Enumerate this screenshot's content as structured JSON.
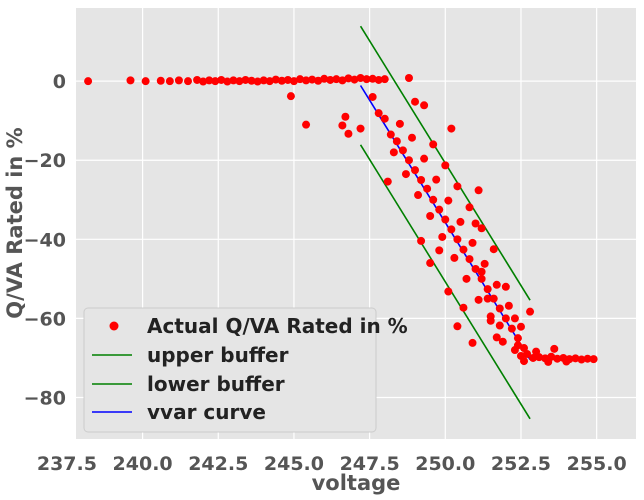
{
  "chart_data": {
    "type": "scatter",
    "title": "",
    "xlabel": "voltage",
    "ylabel": "Q/VA Rated in %",
    "xlim": [
      237.8,
      256.3
    ],
    "ylim": [
      -90.5,
      18.5
    ],
    "xticks": [
      "237.5",
      "240.0",
      "242.5",
      "245.0",
      "247.5",
      "250.0",
      "252.5",
      "255.0"
    ],
    "yticks": [
      "0",
      "−20",
      "−40",
      "−60",
      "−80"
    ],
    "grid": true,
    "legend_position": "lower-left",
    "colors": {
      "background": "#e5e5e5",
      "grid": "#ffffff",
      "actual": "#ff0000",
      "upper_buffer": "#008000",
      "lower_buffer": "#008000",
      "vvar_curve": "#0000ff"
    },
    "series": [
      {
        "name": "Actual Q/VA Rated in %",
        "kind": "scatter",
        "points": [
          [
            238.2,
            0.0
          ],
          [
            239.6,
            0.2
          ],
          [
            240.1,
            0.0
          ],
          [
            240.6,
            0.1
          ],
          [
            240.9,
            0.0
          ],
          [
            241.2,
            0.2
          ],
          [
            241.5,
            0.0
          ],
          [
            241.8,
            0.3
          ],
          [
            242.0,
            -0.1
          ],
          [
            242.2,
            0.2
          ],
          [
            242.4,
            0.0
          ],
          [
            242.6,
            0.3
          ],
          [
            242.8,
            -0.1
          ],
          [
            243.0,
            0.2
          ],
          [
            243.2,
            0.0
          ],
          [
            243.4,
            0.3
          ],
          [
            243.6,
            0.1
          ],
          [
            243.8,
            -0.1
          ],
          [
            244.0,
            0.2
          ],
          [
            244.2,
            0.0
          ],
          [
            244.4,
            0.4
          ],
          [
            244.6,
            0.1
          ],
          [
            244.8,
            0.3
          ],
          [
            245.0,
            0.0
          ],
          [
            245.2,
            0.5
          ],
          [
            245.4,
            0.2
          ],
          [
            245.6,
            0.4
          ],
          [
            245.8,
            0.1
          ],
          [
            246.0,
            0.6
          ],
          [
            246.2,
            0.3
          ],
          [
            246.4,
            0.5
          ],
          [
            246.6,
            0.2
          ],
          [
            246.8,
            0.7
          ],
          [
            247.0,
            0.4
          ],
          [
            247.2,
            0.8
          ],
          [
            247.4,
            0.5
          ],
          [
            247.6,
            0.6
          ],
          [
            247.8,
            0.3
          ],
          [
            248.0,
            0.5
          ],
          [
            248.8,
            0.8
          ],
          [
            244.9,
            -3.8
          ],
          [
            246.7,
            -9.0
          ],
          [
            246.6,
            -11.2
          ],
          [
            245.4,
            -11.0
          ],
          [
            246.8,
            -13.3
          ],
          [
            247.2,
            -12.0
          ],
          [
            248.1,
            -25.4
          ],
          [
            249.0,
            -5.2
          ],
          [
            249.3,
            -6.1
          ],
          [
            250.2,
            -12.0
          ],
          [
            249.2,
            -40.4
          ],
          [
            249.8,
            -42.8
          ],
          [
            249.5,
            -46.0
          ],
          [
            250.1,
            -53.2
          ],
          [
            250.6,
            -57.3
          ],
          [
            250.9,
            -66.2
          ],
          [
            250.4,
            -62.0
          ],
          [
            251.8,
            -61.8
          ],
          [
            251.5,
            -59.5
          ],
          [
            252.3,
            -60.0
          ],
          [
            251.1,
            -27.6
          ],
          [
            251.0,
            -36.0
          ],
          [
            251.2,
            -48.2
          ],
          [
            251.4,
            -55.0
          ],
          [
            251.7,
            -64.8
          ],
          [
            252.8,
            -58.3
          ],
          [
            252.0,
            -52.0
          ],
          [
            247.6,
            -4.0
          ],
          [
            247.8,
            -8.1
          ],
          [
            248.0,
            -9.5
          ],
          [
            248.2,
            -13.5
          ],
          [
            248.4,
            -15.2
          ],
          [
            248.6,
            -17.5
          ],
          [
            248.8,
            -20.0
          ],
          [
            249.0,
            -22.5
          ],
          [
            249.2,
            -25.0
          ],
          [
            249.4,
            -27.2
          ],
          [
            249.6,
            -30.0
          ],
          [
            249.8,
            -32.5
          ],
          [
            250.0,
            -35.0
          ],
          [
            250.2,
            -37.5
          ],
          [
            250.4,
            -40.0
          ],
          [
            250.6,
            -42.6
          ],
          [
            250.8,
            -45.0
          ],
          [
            251.0,
            -47.5
          ],
          [
            251.2,
            -50.0
          ],
          [
            251.4,
            -52.6
          ],
          [
            251.6,
            -55.0
          ],
          [
            251.8,
            -57.5
          ],
          [
            252.0,
            -60.0
          ],
          [
            252.2,
            -62.6
          ],
          [
            252.4,
            -65.0
          ],
          [
            252.6,
            -67.5
          ],
          [
            248.5,
            -10.8
          ],
          [
            248.9,
            -14.3
          ],
          [
            249.3,
            -19.6
          ],
          [
            249.7,
            -24.9
          ],
          [
            250.1,
            -30.2
          ],
          [
            250.5,
            -35.6
          ],
          [
            250.9,
            -40.9
          ],
          [
            251.3,
            -46.2
          ],
          [
            251.7,
            -51.5
          ],
          [
            252.1,
            -56.8
          ],
          [
            252.5,
            -62.1
          ],
          [
            248.3,
            -18.0
          ],
          [
            248.7,
            -23.5
          ],
          [
            249.1,
            -28.8
          ],
          [
            249.5,
            -34.1
          ],
          [
            249.9,
            -39.4
          ],
          [
            250.3,
            -44.7
          ],
          [
            250.7,
            -50.0
          ],
          [
            251.1,
            -55.3
          ],
          [
            251.5,
            -60.6
          ],
          [
            251.9,
            -65.9
          ],
          [
            249.6,
            -16.0
          ],
          [
            250.0,
            -21.3
          ],
          [
            250.4,
            -26.6
          ],
          [
            250.8,
            -31.9
          ],
          [
            251.2,
            -37.2
          ],
          [
            251.6,
            -42.5
          ],
          [
            252.3,
            -68.0
          ],
          [
            252.5,
            -69.5
          ],
          [
            252.7,
            -69.0
          ],
          [
            252.9,
            -70.0
          ],
          [
            253.1,
            -69.8
          ],
          [
            253.3,
            -70.1
          ],
          [
            253.5,
            -69.7
          ],
          [
            253.7,
            -70.2
          ],
          [
            253.9,
            -70.0
          ],
          [
            254.1,
            -70.3
          ],
          [
            254.3,
            -70.1
          ],
          [
            254.5,
            -70.4
          ],
          [
            254.7,
            -70.2
          ],
          [
            254.9,
            -70.3
          ],
          [
            253.0,
            -68.4
          ],
          [
            253.6,
            -67.7
          ],
          [
            252.4,
            -66.8
          ],
          [
            252.6,
            -70.8
          ],
          [
            253.4,
            -71.0
          ],
          [
            254.0,
            -70.9
          ]
        ]
      },
      {
        "name": "upper buffer",
        "kind": "line",
        "x": [
          247.2,
          252.8
        ],
        "y": [
          13.9,
          -55.4
        ]
      },
      {
        "name": "lower buffer",
        "kind": "line",
        "x": [
          247.2,
          252.8
        ],
        "y": [
          -16.1,
          -85.4
        ]
      },
      {
        "name": "vvar curve",
        "kind": "line",
        "x": [
          247.2,
          252.8
        ],
        "y": [
          -1.1,
          -70.4
        ]
      }
    ]
  }
}
